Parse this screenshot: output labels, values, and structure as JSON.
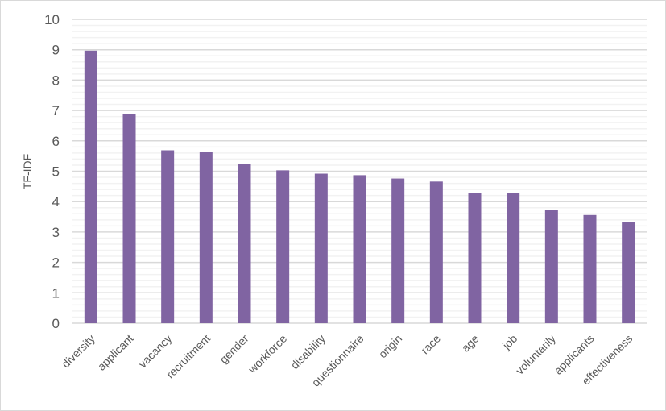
{
  "chart_data": {
    "type": "bar",
    "title": "",
    "xlabel": "",
    "ylabel": "TF-IDF",
    "ylim": [
      0,
      10
    ],
    "yticks": [
      0,
      1,
      2,
      3,
      4,
      5,
      6,
      7,
      8,
      9,
      10
    ],
    "grid": true,
    "minor_grid_step": 0.2,
    "bar_color": "#8064a2",
    "categories": [
      "diversity",
      "applicant",
      "vacancy",
      "recruitment",
      "gender",
      "workforce",
      "disability",
      "questionnaire",
      "origin",
      "race",
      "age",
      "job",
      "voluntarily",
      "applicants",
      "effectiveness"
    ],
    "values": [
      8.97,
      6.87,
      5.69,
      5.63,
      5.24,
      5.03,
      4.92,
      4.87,
      4.76,
      4.66,
      4.28,
      4.28,
      3.72,
      3.56,
      3.34
    ]
  }
}
